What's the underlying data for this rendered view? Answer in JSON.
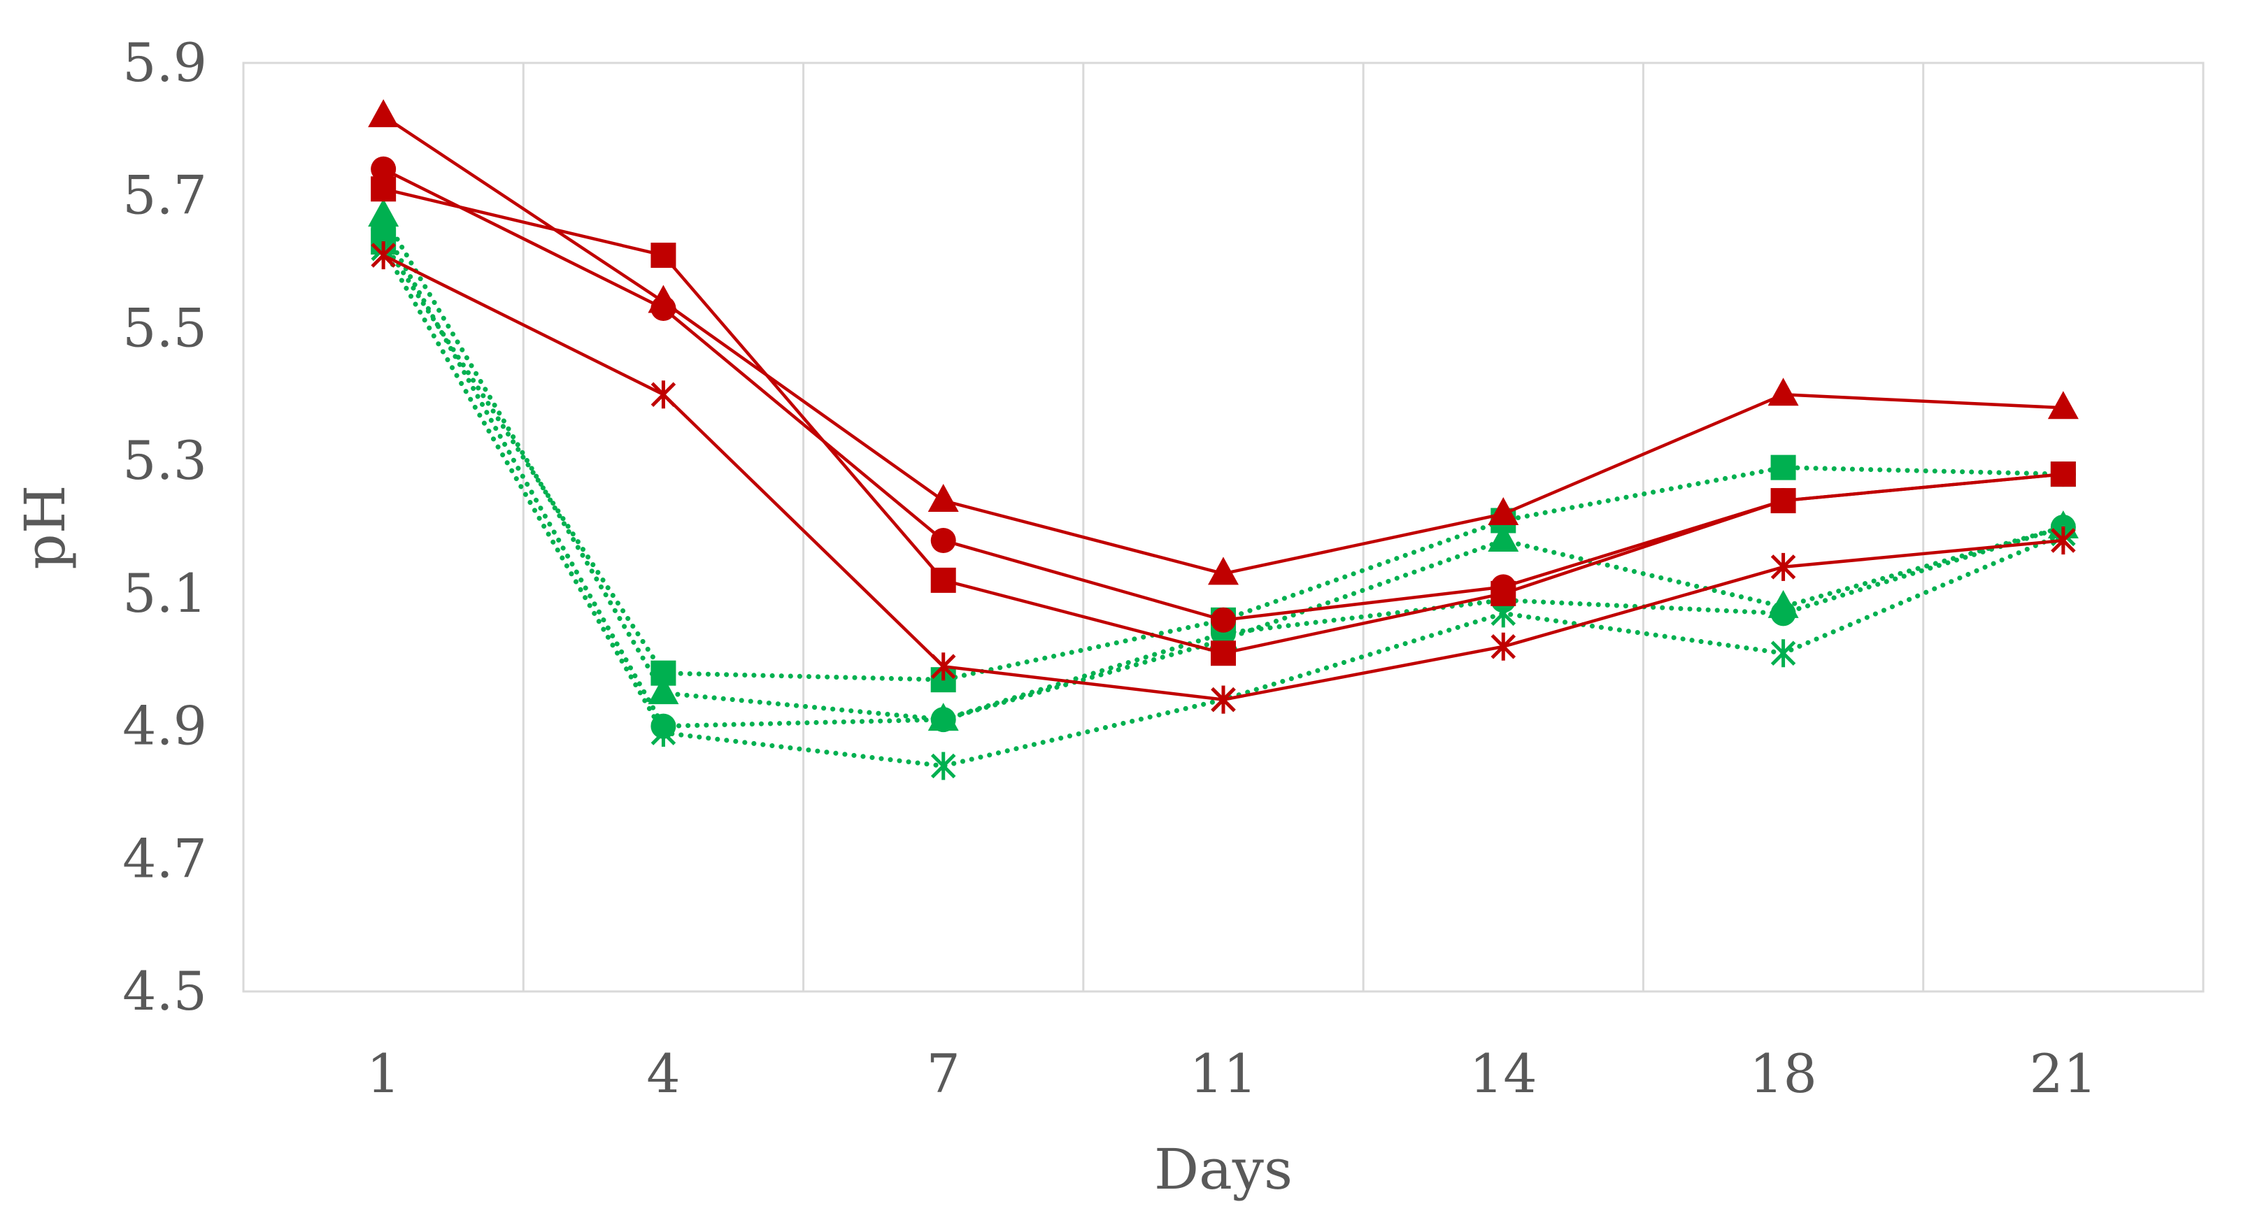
{
  "chart_data": {
    "type": "line",
    "title": "",
    "xlabel": "Days",
    "ylabel": "pH",
    "categories": [
      "1",
      "4",
      "7",
      "11",
      "14",
      "18",
      "21"
    ],
    "ylim": [
      4.5,
      5.9
    ],
    "yticks": [
      "4.5",
      "4.7",
      "4.9",
      "5.1",
      "5.3",
      "5.5",
      "5.7",
      "5.9"
    ],
    "grid": "vertical",
    "legend": "none",
    "series": [
      {
        "name": "red-triangle",
        "color": "#C00000",
        "marker": "triangle",
        "dash": "solid",
        "values": [
          5.82,
          5.54,
          5.24,
          5.13,
          5.22,
          5.4,
          5.38
        ]
      },
      {
        "name": "red-circle",
        "color": "#C00000",
        "marker": "circle",
        "dash": "solid",
        "values": [
          5.74,
          5.53,
          5.18,
          5.06,
          5.11,
          5.24,
          5.28
        ]
      },
      {
        "name": "red-square",
        "color": "#C00000",
        "marker": "square",
        "dash": "solid",
        "values": [
          5.71,
          5.61,
          5.12,
          5.01,
          5.1,
          5.24,
          5.28
        ]
      },
      {
        "name": "red-star",
        "color": "#C00000",
        "marker": "star",
        "dash": "solid",
        "values": [
          5.61,
          5.4,
          4.99,
          4.94,
          5.02,
          5.14,
          5.18
        ]
      },
      {
        "name": "green-triangle",
        "color": "#00B050",
        "marker": "triangle",
        "dash": "dotted",
        "values": [
          5.67,
          4.95,
          4.91,
          5.03,
          5.18,
          5.08,
          5.2
        ]
      },
      {
        "name": "green-circle",
        "color": "#00B050",
        "marker": "circle",
        "dash": "dotted",
        "values": [
          5.65,
          4.9,
          4.91,
          5.04,
          5.09,
          5.07,
          5.2
        ]
      },
      {
        "name": "green-square",
        "color": "#00B050",
        "marker": "square",
        "dash": "dotted",
        "values": [
          5.63,
          4.98,
          4.97,
          5.06,
          5.21,
          5.29,
          5.28
        ]
      },
      {
        "name": "green-star",
        "color": "#00B050",
        "marker": "star",
        "dash": "dotted",
        "values": [
          5.62,
          4.89,
          4.84,
          4.94,
          5.07,
          5.01,
          5.19
        ]
      }
    ]
  }
}
